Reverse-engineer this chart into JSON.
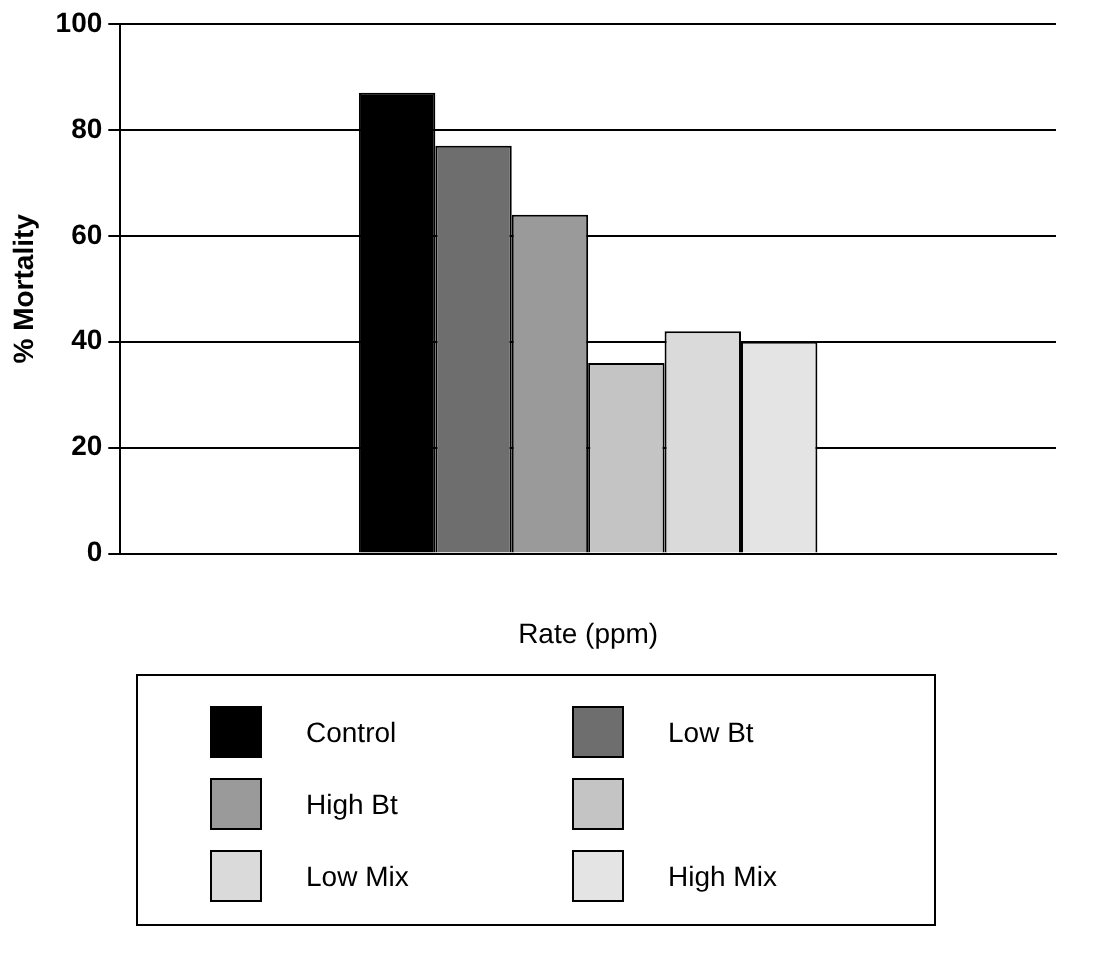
{
  "chart_data": {
    "type": "bar",
    "xlabel": "Rate (ppm)",
    "ylabel": "% Mortality",
    "categories": [
      null
    ],
    "series": [
      {
        "name": "Control",
        "color": "#000000",
        "values": [
          87
        ]
      },
      {
        "name": "Low Bt",
        "color": "#6e6e6e",
        "values": [
          77
        ]
      },
      {
        "name": "High Bt",
        "color": "#9a9a9a",
        "values": [
          64
        ]
      },
      {
        "color": "#c4c4c4",
        "values": [
          36
        ]
      },
      {
        "name": "Low Mix",
        "color": "#dadada",
        "values": [
          42
        ]
      },
      {
        "name": "High Mix",
        "color": "#e4e4e4",
        "values": [
          40
        ]
      }
    ],
    "ylim": [
      0,
      100
    ],
    "yticks": [
      0,
      20,
      40,
      60,
      80,
      100
    ],
    "grid": "y",
    "legend": "bottom"
  }
}
